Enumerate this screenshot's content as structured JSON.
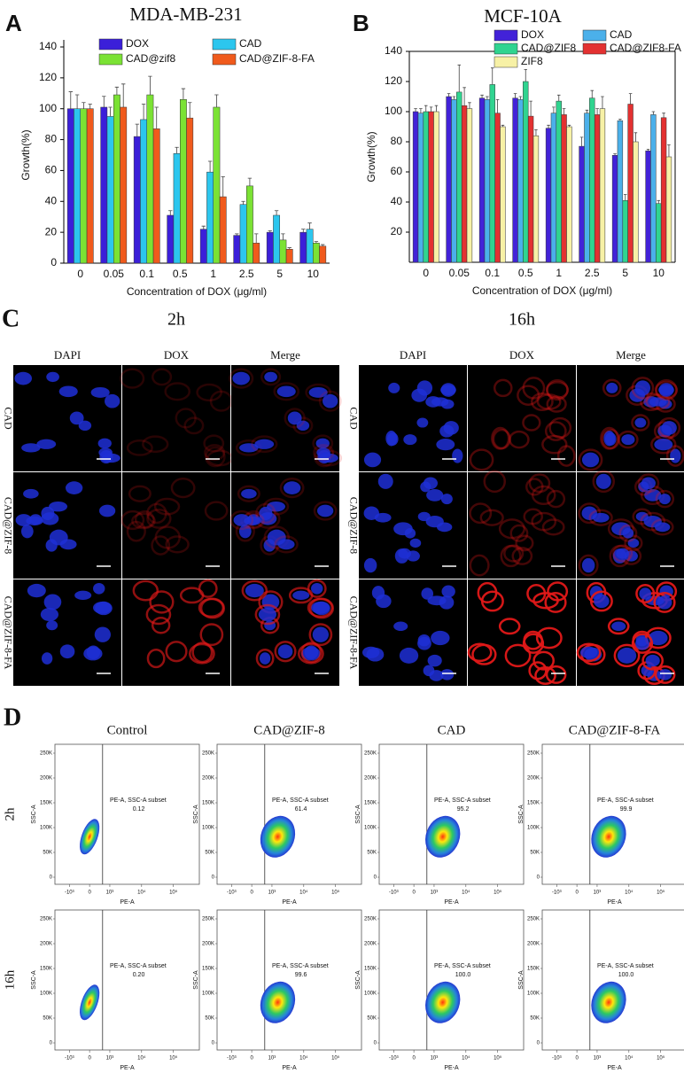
{
  "panel_letters": [
    "A",
    "B",
    "C",
    "D"
  ],
  "chart_data": [
    {
      "type": "bar",
      "title": "MDA-MB-231",
      "xlabel": "Concentration of DOX (μg/ml)",
      "ylabel": "Growth(%)",
      "categories": [
        "0",
        "0.05",
        "0.1",
        "0.5",
        "1",
        "2.5",
        "5",
        "10"
      ],
      "ylim": [
        0,
        140
      ],
      "yticks": [
        0,
        20,
        40,
        60,
        80,
        100,
        120,
        140
      ],
      "series": [
        {
          "name": "DOX",
          "color": "#3b1fd9",
          "values": [
            100,
            101,
            82,
            31,
            22,
            18,
            20,
            20
          ],
          "errors": [
            11,
            7,
            8,
            3,
            2,
            1,
            1,
            2
          ]
        },
        {
          "name": "CAD",
          "color": "#2cc6ee",
          "values": [
            100,
            95,
            93,
            71,
            59,
            38,
            31,
            22
          ],
          "errors": [
            9,
            6,
            10,
            4,
            7,
            2,
            3,
            4
          ]
        },
        {
          "name": "CAD@zif8",
          "color": "#7be234",
          "values": [
            100,
            109,
            109,
            106,
            101,
            50,
            15,
            13
          ],
          "errors": [
            4,
            5,
            12,
            7,
            8,
            5,
            4,
            1
          ]
        },
        {
          "name": "CAD@ZIF-8-FA",
          "color": "#f05a1c",
          "values": [
            100,
            101,
            87,
            94,
            43,
            13,
            9,
            11
          ],
          "errors": [
            3,
            15,
            14,
            10,
            13,
            6,
            1,
            1
          ]
        }
      ]
    },
    {
      "type": "bar",
      "title": "MCF-10A",
      "xlabel": "Concentration of DOX (μg/ml)",
      "ylabel": "Growth(%)",
      "categories": [
        "0",
        "0.05",
        "0.1",
        "0.5",
        "1",
        "2.5",
        "5",
        "10"
      ],
      "ylim": [
        0,
        140
      ],
      "yticks": [
        20,
        40,
        60,
        80,
        100,
        120,
        140
      ],
      "series": [
        {
          "name": "DOX",
          "color": "#4222d8",
          "values": [
            100,
            110,
            109,
            109,
            89,
            77,
            71,
            74
          ],
          "errors": [
            2,
            2,
            2,
            3,
            2,
            6,
            1,
            1
          ]
        },
        {
          "name": "CAD",
          "color": "#4bb0ea",
          "values": [
            99,
            108,
            108,
            108,
            99,
            99,
            94,
            98
          ],
          "errors": [
            3,
            2,
            2,
            2,
            4,
            2,
            1,
            2
          ]
        },
        {
          "name": "CAD@ZIF8",
          "color": "#30d490",
          "values": [
            100,
            113,
            118,
            120,
            107,
            109,
            41,
            39
          ],
          "errors": [
            4,
            18,
            11,
            8,
            4,
            5,
            4,
            2
          ]
        },
        {
          "name": "CAD@ZIF8-FA",
          "color": "#e33131",
          "values": [
            100,
            104,
            99,
            97,
            98,
            98,
            105,
            96
          ],
          "errors": [
            3,
            12,
            9,
            10,
            4,
            4,
            7,
            3
          ]
        },
        {
          "name": "ZIF8",
          "color": "#f7f1a6",
          "values": [
            100,
            102,
            90,
            84,
            90,
            102,
            80,
            70
          ],
          "errors": [
            4,
            4,
            1,
            4,
            1,
            8,
            6,
            8
          ]
        }
      ]
    }
  ],
  "microscopy": {
    "times": [
      "2h",
      "16h"
    ],
    "channels": [
      "DAPI",
      "DOX",
      "Merge"
    ],
    "rows": [
      "CAD",
      "CAD@ZIF-8",
      "CAD@ZIF-8-FA"
    ]
  },
  "flow": {
    "columns": [
      "Control",
      "CAD@ZIF-8",
      "CAD",
      "CAD@ZIF-8-FA"
    ],
    "rows": [
      "2h",
      "16h"
    ],
    "gate_label": "PE-A, SSC-A subset",
    "values": [
      [
        "0.12",
        "61.4",
        "95.2",
        "99.9"
      ],
      [
        "0.20",
        "99.6",
        "100.0",
        "100.0"
      ]
    ],
    "xlabel": "PE-A",
    "ylabel": "SSC-A",
    "xticks": [
      "-10³",
      "0",
      "10³",
      "10⁴",
      "10⁵"
    ],
    "yticks": [
      "0",
      "50K",
      "100K",
      "150K",
      "200K",
      "250K"
    ]
  }
}
